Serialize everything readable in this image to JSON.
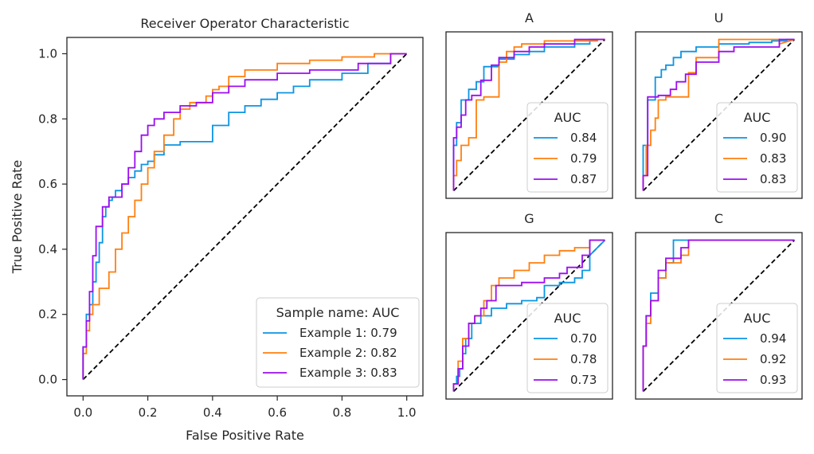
{
  "chart_data": [
    {
      "type": "line",
      "title": "Receiver Operator Characteristic",
      "xlabel": "False Positive Rate",
      "ylabel": "True Positive Rate",
      "xlim": [
        -0.05,
        1.05
      ],
      "ylim": [
        -0.05,
        1.05
      ],
      "xticks": [
        "0.0",
        "0.2",
        "0.4",
        "0.6",
        "0.8",
        "1.0"
      ],
      "yticks": [
        "0.0",
        "0.2",
        "0.4",
        "0.6",
        "0.8",
        "1.0"
      ],
      "xtick_values": [
        0,
        0.2,
        0.4,
        0.6,
        0.8,
        1.0
      ],
      "ytick_values": [
        0,
        0.2,
        0.4,
        0.6,
        0.8,
        1.0
      ],
      "grid": false,
      "legend_title": "Sample name: AUC",
      "legend_position": "lower-right",
      "diagonal": true,
      "series": [
        {
          "name": "Example 1: 0.79",
          "color": "#0b95e3",
          "x": [
            0,
            0,
            0.01,
            0.01,
            0.02,
            0.02,
            0.03,
            0.03,
            0.04,
            0.04,
            0.05,
            0.05,
            0.06,
            0.06,
            0.07,
            0.07,
            0.08,
            0.08,
            0.09,
            0.09,
            0.1,
            0.1,
            0.12,
            0.12,
            0.14,
            0.14,
            0.16,
            0.16,
            0.18,
            0.18,
            0.2,
            0.2,
            0.22,
            0.22,
            0.25,
            0.25,
            0.3,
            0.3,
            0.4,
            0.4,
            0.45,
            0.45,
            0.5,
            0.5,
            0.55,
            0.55,
            0.6,
            0.6,
            0.65,
            0.65,
            0.7,
            0.7,
            0.8,
            0.8,
            0.88,
            0.88,
            0.95,
            0.95,
            1.0
          ],
          "y": [
            0,
            0.1,
            0.1,
            0.2,
            0.2,
            0.23,
            0.23,
            0.3,
            0.3,
            0.36,
            0.36,
            0.42,
            0.42,
            0.5,
            0.5,
            0.53,
            0.53,
            0.55,
            0.55,
            0.56,
            0.56,
            0.58,
            0.58,
            0.6,
            0.6,
            0.62,
            0.62,
            0.64,
            0.64,
            0.66,
            0.66,
            0.67,
            0.67,
            0.69,
            0.69,
            0.72,
            0.72,
            0.73,
            0.73,
            0.78,
            0.78,
            0.82,
            0.82,
            0.84,
            0.84,
            0.86,
            0.86,
            0.88,
            0.88,
            0.9,
            0.9,
            0.92,
            0.92,
            0.94,
            0.94,
            0.97,
            0.97,
            1.0,
            1.0
          ]
        },
        {
          "name": "Example 2: 0.82",
          "color": "#ff7f0e",
          "x": [
            0,
            0,
            0.01,
            0.01,
            0.02,
            0.02,
            0.03,
            0.03,
            0.05,
            0.05,
            0.08,
            0.08,
            0.1,
            0.1,
            0.12,
            0.12,
            0.14,
            0.14,
            0.16,
            0.16,
            0.18,
            0.18,
            0.2,
            0.2,
            0.22,
            0.22,
            0.25,
            0.25,
            0.28,
            0.28,
            0.3,
            0.3,
            0.33,
            0.33,
            0.38,
            0.38,
            0.4,
            0.4,
            0.42,
            0.42,
            0.45,
            0.45,
            0.5,
            0.5,
            0.6,
            0.6,
            0.7,
            0.7,
            0.8,
            0.8,
            0.9,
            0.9,
            1.0
          ],
          "y": [
            0,
            0.08,
            0.08,
            0.15,
            0.15,
            0.2,
            0.2,
            0.23,
            0.23,
            0.28,
            0.28,
            0.33,
            0.33,
            0.4,
            0.4,
            0.45,
            0.45,
            0.5,
            0.5,
            0.55,
            0.55,
            0.6,
            0.6,
            0.65,
            0.65,
            0.7,
            0.7,
            0.75,
            0.75,
            0.8,
            0.8,
            0.83,
            0.83,
            0.85,
            0.85,
            0.87,
            0.87,
            0.89,
            0.89,
            0.9,
            0.9,
            0.93,
            0.93,
            0.95,
            0.95,
            0.97,
            0.97,
            0.98,
            0.98,
            0.99,
            0.99,
            1.0,
            1.0
          ]
        },
        {
          "name": "Example 3: 0.83",
          "color": "#9b0ef0",
          "x": [
            0,
            0,
            0.01,
            0.01,
            0.02,
            0.02,
            0.03,
            0.03,
            0.04,
            0.04,
            0.06,
            0.06,
            0.08,
            0.08,
            0.12,
            0.12,
            0.14,
            0.14,
            0.16,
            0.16,
            0.18,
            0.18,
            0.2,
            0.2,
            0.22,
            0.22,
            0.25,
            0.25,
            0.3,
            0.3,
            0.35,
            0.35,
            0.4,
            0.4,
            0.45,
            0.45,
            0.5,
            0.5,
            0.6,
            0.6,
            0.7,
            0.7,
            0.85,
            0.85,
            0.95,
            0.95,
            1.0
          ],
          "y": [
            0,
            0.1,
            0.1,
            0.18,
            0.18,
            0.27,
            0.27,
            0.38,
            0.38,
            0.47,
            0.47,
            0.53,
            0.53,
            0.56,
            0.56,
            0.6,
            0.6,
            0.65,
            0.65,
            0.7,
            0.7,
            0.75,
            0.75,
            0.78,
            0.78,
            0.8,
            0.8,
            0.82,
            0.82,
            0.84,
            0.84,
            0.85,
            0.85,
            0.88,
            0.88,
            0.9,
            0.9,
            0.92,
            0.92,
            0.94,
            0.94,
            0.95,
            0.95,
            0.97,
            0.97,
            1.0,
            1.0
          ]
        }
      ]
    },
    {
      "type": "line",
      "title": "A",
      "xlim": [
        -0.05,
        1.05
      ],
      "ylim": [
        -0.05,
        1.05
      ],
      "legend_title": "AUC",
      "legend_position": "lower-right",
      "diagonal": true,
      "series": [
        {
          "name": "0.84",
          "color": "#0b95e3",
          "x": [
            0,
            0,
            0.02,
            0.02,
            0.05,
            0.05,
            0.1,
            0.1,
            0.15,
            0.15,
            0.2,
            0.2,
            0.3,
            0.3,
            0.4,
            0.4,
            0.5,
            0.5,
            0.6,
            0.6,
            0.8,
            0.8,
            0.9,
            0.9,
            1.0
          ],
          "y": [
            0,
            0.3,
            0.3,
            0.45,
            0.45,
            0.6,
            0.6,
            0.67,
            0.67,
            0.72,
            0.72,
            0.82,
            0.82,
            0.87,
            0.87,
            0.9,
            0.9,
            0.92,
            0.92,
            0.95,
            0.95,
            0.97,
            0.97,
            1.0,
            1.0
          ]
        },
        {
          "name": "0.79",
          "color": "#ff7f0e",
          "x": [
            0,
            0,
            0.02,
            0.02,
            0.05,
            0.05,
            0.1,
            0.1,
            0.15,
            0.15,
            0.2,
            0.2,
            0.3,
            0.3,
            0.35,
            0.35,
            0.4,
            0.4,
            0.45,
            0.45,
            0.6,
            0.6,
            0.95,
            0.95,
            1.0
          ],
          "y": [
            0,
            0.1,
            0.1,
            0.2,
            0.2,
            0.3,
            0.3,
            0.35,
            0.35,
            0.6,
            0.6,
            0.62,
            0.62,
            0.85,
            0.85,
            0.92,
            0.92,
            0.95,
            0.95,
            0.97,
            0.97,
            0.99,
            0.99,
            1.0,
            1.0
          ]
        },
        {
          "name": "0.87",
          "color": "#9b0ef0",
          "x": [
            0,
            0,
            0.02,
            0.02,
            0.05,
            0.05,
            0.08,
            0.08,
            0.12,
            0.12,
            0.18,
            0.18,
            0.25,
            0.25,
            0.3,
            0.3,
            0.4,
            0.4,
            0.5,
            0.5,
            0.6,
            0.6,
            0.8,
            0.8,
            1.0
          ],
          "y": [
            0,
            0.35,
            0.35,
            0.42,
            0.42,
            0.5,
            0.5,
            0.6,
            0.6,
            0.63,
            0.63,
            0.73,
            0.73,
            0.83,
            0.83,
            0.88,
            0.88,
            0.92,
            0.92,
            0.95,
            0.95,
            0.97,
            0.97,
            1.0,
            1.0
          ]
        }
      ]
    },
    {
      "type": "line",
      "title": "U",
      "xlim": [
        -0.05,
        1.05
      ],
      "ylim": [
        -0.05,
        1.05
      ],
      "legend_title": "AUC",
      "legend_position": "lower-right",
      "diagonal": true,
      "series": [
        {
          "name": "0.90",
          "color": "#0b95e3",
          "x": [
            0,
            0,
            0.03,
            0.03,
            0.08,
            0.08,
            0.12,
            0.12,
            0.15,
            0.15,
            0.2,
            0.2,
            0.25,
            0.25,
            0.35,
            0.35,
            0.5,
            0.5,
            0.7,
            0.7,
            0.85,
            0.85,
            0.95,
            0.95,
            1.0
          ],
          "y": [
            0,
            0.3,
            0.3,
            0.6,
            0.6,
            0.75,
            0.75,
            0.8,
            0.8,
            0.83,
            0.83,
            0.88,
            0.88,
            0.92,
            0.92,
            0.95,
            0.95,
            0.97,
            0.97,
            0.98,
            0.98,
            0.99,
            0.99,
            1.0,
            1.0
          ]
        },
        {
          "name": "0.83",
          "color": "#ff7f0e",
          "x": [
            0,
            0,
            0.02,
            0.02,
            0.05,
            0.05,
            0.08,
            0.08,
            0.1,
            0.1,
            0.15,
            0.15,
            0.3,
            0.3,
            0.35,
            0.35,
            0.5,
            0.5,
            0.9,
            0.9,
            1.0
          ],
          "y": [
            0,
            0.1,
            0.1,
            0.3,
            0.3,
            0.4,
            0.4,
            0.48,
            0.48,
            0.6,
            0.6,
            0.62,
            0.62,
            0.78,
            0.78,
            0.88,
            0.88,
            1.0,
            1.0,
            0.97,
            1.0
          ]
        },
        {
          "name": "0.83",
          "color": "#9b0ef0",
          "x": [
            0,
            0,
            0.03,
            0.03,
            0.1,
            0.1,
            0.18,
            0.18,
            0.22,
            0.22,
            0.28,
            0.28,
            0.35,
            0.35,
            0.5,
            0.5,
            0.6,
            0.6,
            0.9,
            0.9,
            1.0
          ],
          "y": [
            0,
            0.1,
            0.1,
            0.62,
            0.62,
            0.63,
            0.63,
            0.67,
            0.67,
            0.72,
            0.72,
            0.77,
            0.77,
            0.85,
            0.85,
            0.92,
            0.92,
            0.95,
            0.95,
            1.0,
            1.0
          ]
        }
      ]
    },
    {
      "type": "line",
      "title": "G",
      "xlim": [
        -0.05,
        1.05
      ],
      "ylim": [
        -0.05,
        1.05
      ],
      "legend_title": "AUC",
      "legend_position": "lower-right",
      "diagonal": true,
      "series": [
        {
          "name": "0.70",
          "color": "#0b95e3",
          "x": [
            0,
            0,
            0.02,
            0.02,
            0.04,
            0.04,
            0.06,
            0.06,
            0.08,
            0.08,
            0.12,
            0.12,
            0.18,
            0.18,
            0.25,
            0.25,
            0.35,
            0.35,
            0.45,
            0.45,
            0.55,
            0.55,
            0.6,
            0.6,
            0.7,
            0.7,
            0.8,
            0.8,
            0.85,
            0.85,
            0.9,
            0.9,
            1.0
          ],
          "y": [
            0,
            0.05,
            0.05,
            0.1,
            0.1,
            0.15,
            0.15,
            0.25,
            0.25,
            0.35,
            0.35,
            0.45,
            0.45,
            0.5,
            0.5,
            0.55,
            0.55,
            0.58,
            0.58,
            0.6,
            0.6,
            0.62,
            0.62,
            0.7,
            0.7,
            0.72,
            0.72,
            0.75,
            0.75,
            0.8,
            0.8,
            0.9,
            1.0
          ]
        },
        {
          "name": "0.78",
          "color": "#ff7f0e",
          "x": [
            0,
            0,
            0.03,
            0.03,
            0.06,
            0.06,
            0.1,
            0.1,
            0.14,
            0.14,
            0.2,
            0.2,
            0.25,
            0.25,
            0.3,
            0.3,
            0.4,
            0.4,
            0.5,
            0.5,
            0.6,
            0.6,
            0.7,
            0.7,
            0.8,
            0.8,
            0.9,
            0.9,
            1.0
          ],
          "y": [
            0,
            0.05,
            0.05,
            0.2,
            0.2,
            0.35,
            0.35,
            0.45,
            0.45,
            0.5,
            0.5,
            0.6,
            0.6,
            0.7,
            0.7,
            0.75,
            0.75,
            0.8,
            0.8,
            0.85,
            0.85,
            0.9,
            0.9,
            0.93,
            0.93,
            0.95,
            0.95,
            1.0,
            1.0
          ]
        },
        {
          "name": "0.73",
          "color": "#9b0ef0",
          "x": [
            0,
            0,
            0.03,
            0.03,
            0.06,
            0.06,
            0.1,
            0.1,
            0.14,
            0.14,
            0.18,
            0.18,
            0.22,
            0.22,
            0.28,
            0.28,
            0.45,
            0.45,
            0.6,
            0.6,
            0.7,
            0.7,
            0.75,
            0.75,
            0.85,
            0.85,
            0.9,
            0.9,
            1.0
          ],
          "y": [
            0,
            0.05,
            0.05,
            0.15,
            0.15,
            0.3,
            0.3,
            0.45,
            0.45,
            0.5,
            0.5,
            0.55,
            0.55,
            0.6,
            0.6,
            0.7,
            0.7,
            0.72,
            0.72,
            0.75,
            0.75,
            0.78,
            0.78,
            0.82,
            0.82,
            0.9,
            0.9,
            1.0,
            1.0
          ]
        }
      ]
    },
    {
      "type": "line",
      "title": "C",
      "xlim": [
        -0.05,
        1.05
      ],
      "ylim": [
        -0.05,
        1.05
      ],
      "legend_title": "AUC",
      "legend_position": "lower-right",
      "diagonal": true,
      "series": [
        {
          "name": "0.94",
          "color": "#0b95e3",
          "x": [
            0,
            0,
            0.02,
            0.02,
            0.05,
            0.05,
            0.1,
            0.1,
            0.15,
            0.15,
            0.2,
            0.2,
            1.0
          ],
          "y": [
            0,
            0.3,
            0.3,
            0.5,
            0.5,
            0.65,
            0.65,
            0.75,
            0.75,
            0.85,
            0.85,
            1.0,
            1.0
          ]
        },
        {
          "name": "0.92",
          "color": "#ff7f0e",
          "x": [
            0,
            0,
            0.02,
            0.02,
            0.05,
            0.05,
            0.1,
            0.1,
            0.15,
            0.15,
            0.25,
            0.25,
            0.3,
            0.3,
            1.0
          ],
          "y": [
            0,
            0.3,
            0.3,
            0.45,
            0.45,
            0.6,
            0.6,
            0.75,
            0.75,
            0.85,
            0.85,
            0.9,
            0.9,
            1.0,
            1.0
          ]
        },
        {
          "name": "0.93",
          "color": "#9b0ef0",
          "x": [
            0,
            0,
            0.02,
            0.02,
            0.05,
            0.05,
            0.1,
            0.1,
            0.15,
            0.15,
            0.25,
            0.25,
            0.3,
            0.3,
            1.0
          ],
          "y": [
            0,
            0.3,
            0.3,
            0.5,
            0.5,
            0.6,
            0.6,
            0.8,
            0.8,
            0.88,
            0.88,
            0.95,
            0.95,
            1.0,
            1.0
          ]
        }
      ]
    }
  ]
}
